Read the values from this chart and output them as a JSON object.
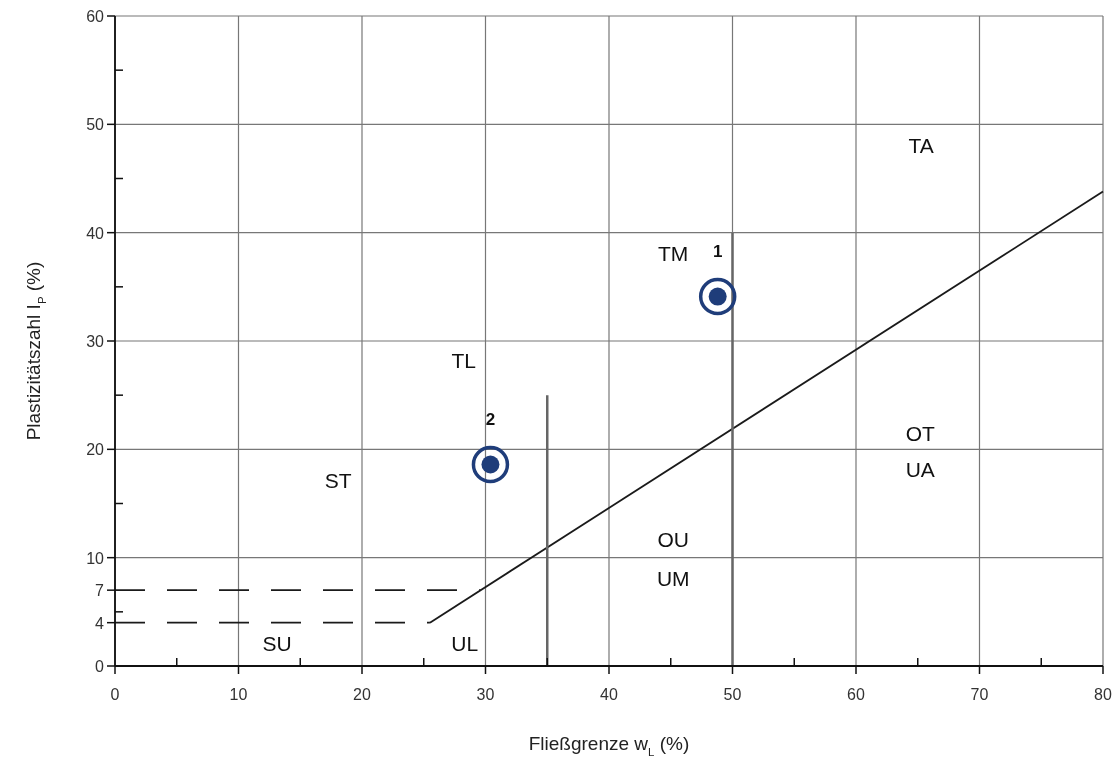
{
  "chart_data": {
    "type": "scatter",
    "xlabel": "Fließgrenze w$_{L}$ (%)",
    "ylabel": "Plastizitätszahl I$_{P}$ (%)",
    "xlim": [
      0,
      80
    ],
    "ylim": [
      0,
      60
    ],
    "xticks": [
      0,
      {
        "value": 5,
        "label": null
      },
      10,
      {
        "value": 15,
        "label": null
      },
      20,
      {
        "value": 25,
        "label": null
      },
      30,
      {
        "value": 35,
        "label": null
      },
      40,
      {
        "value": 45,
        "label": null
      },
      50,
      {
        "value": 55,
        "label": null
      },
      60,
      {
        "value": 65,
        "label": null
      },
      70,
      {
        "value": 75,
        "label": null
      },
      80
    ],
    "yticks": [
      0,
      4,
      {
        "value": 5,
        "label": null
      },
      7,
      10,
      {
        "value": 15,
        "label": null
      },
      20,
      {
        "value": 25,
        "label": null
      },
      30,
      {
        "value": 35,
        "label": null
      },
      40,
      {
        "value": 45,
        "label": null
      },
      50,
      {
        "value": 55,
        "label": null
      },
      60
    ],
    "grid": true,
    "series": [
      {
        "type": "line",
        "color": "#1a1a1a",
        "x": [
          25.5,
          80
        ],
        "values": [
          4,
          43.8
        ]
      },
      {
        "type": "line",
        "color": "#1a1a1a",
        "line_style": "dashed",
        "x": [
          0,
          29.6
        ],
        "values": [
          7,
          7
        ]
      },
      {
        "type": "line",
        "color": "#1a1a1a",
        "line_style": "dashed",
        "x": [
          0,
          25.5
        ],
        "values": [
          4,
          4
        ]
      },
      {
        "type": "line",
        "color": "#666666",
        "x": [
          35,
          35
        ],
        "values": [
          0,
          25
        ]
      },
      {
        "type": "line",
        "color": "#666666",
        "x": [
          50,
          50
        ],
        "values": [
          0,
          40
        ]
      },
      {
        "color": "#1f3d7a",
        "marker": "circle",
        "x": [
          48.8,
          30.4
        ],
        "values": [
          34.1,
          18.6
        ]
      }
    ],
    "annotations": [
      "TA",
      "TM",
      "TL",
      "ST",
      "SU",
      "UL",
      "OU",
      "UM",
      "OT",
      "UA",
      {
        "text": "1",
        "x": 48.8,
        "y": 34.1
      },
      {
        "text": "2",
        "x": 30.4,
        "y": 18.6
      }
    ]
  }
}
